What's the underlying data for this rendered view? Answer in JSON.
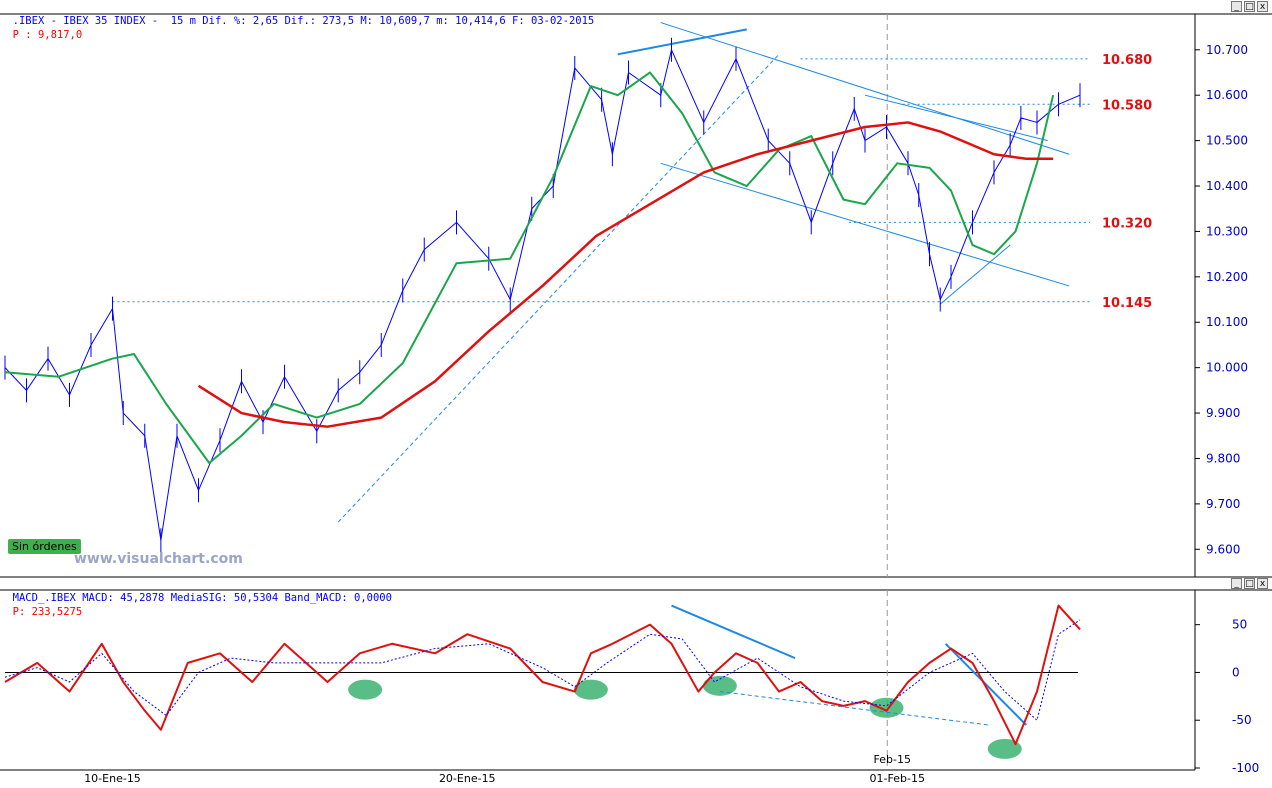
{
  "price_panel": {
    "header_main": ".IBEX - IBEX 35 INDEX -  15 m Dif. %: 2,65 Dif.: 273,5 M: 10,609,7 m: 10,414,6 F: 03-02-2015",
    "header_p": "P : 9,817,0"
  },
  "macd_panel": {
    "header_main": "MACD_.IBEX MACD: 45,2878 MediaSIG: 50,5304 Band_MACD: 0,0000",
    "header_p": "P: 233,5275"
  },
  "window_buttons": [
    "_",
    "□",
    "x"
  ],
  "status_badge": "Sin órdenes",
  "watermark": "www.visualchart.com",
  "colors": {
    "price": "#0000ff",
    "ma_fast": "#1aa64a",
    "ma_slow": "#e01010",
    "macd": "#e01010",
    "signal": "#0000ff",
    "trendline": "#1e88e5",
    "level_label": "#e01010",
    "axis_text": "#0000cc",
    "marker": "#3cb371"
  },
  "chart_data": [
    {
      "type": "line",
      "title": "IBEX 35 INDEX 15 m",
      "ylim": [
        9550,
        10770
      ],
      "yticks": [
        9600,
        9700,
        9800,
        9900,
        10000,
        10100,
        10200,
        10300,
        10400,
        10500,
        10600,
        10700
      ],
      "ytick_labels": [
        "9.600",
        "9.700",
        "9.800",
        "9.900",
        "10.000",
        "10.100",
        "10.200",
        "10.300",
        "10.400",
        "10.500",
        "10.600",
        "10.700"
      ],
      "x_labels": [
        "10-Ene-15",
        "20-Ene-15",
        "01-Feb-15"
      ],
      "x_label_positions": [
        0.1,
        0.43,
        0.83
      ],
      "levels": [
        {
          "value": 10680,
          "label": "10.680"
        },
        {
          "value": 10580,
          "label": "10.580"
        },
        {
          "value": 10320,
          "label": "10.320"
        },
        {
          "value": 10145,
          "label": "10.145"
        }
      ],
      "series": [
        {
          "name": "price",
          "x": [
            0,
            0.02,
            0.04,
            0.06,
            0.08,
            0.1,
            0.11,
            0.13,
            0.145,
            0.16,
            0.18,
            0.2,
            0.22,
            0.24,
            0.26,
            0.29,
            0.31,
            0.33,
            0.35,
            0.37,
            0.39,
            0.42,
            0.45,
            0.47,
            0.49,
            0.51,
            0.53,
            0.555,
            0.565,
            0.58,
            0.61,
            0.62,
            0.65,
            0.68,
            0.71,
            0.73,
            0.75,
            0.77,
            0.79,
            0.8,
            0.82,
            0.84,
            0.85,
            0.86,
            0.87,
            0.88,
            0.9,
            0.92,
            0.935,
            0.945,
            0.96,
            0.98,
            1.0
          ],
          "y": [
            10000,
            9950,
            10020,
            9940,
            10050,
            10130,
            9900,
            9850,
            9620,
            9850,
            9730,
            9840,
            9970,
            9880,
            9980,
            9860,
            9950,
            9990,
            10050,
            10170,
            10260,
            10320,
            10240,
            10150,
            10350,
            10400,
            10660,
            10590,
            10470,
            10650,
            10600,
            10700,
            10540,
            10680,
            10500,
            10450,
            10320,
            10450,
            10570,
            10500,
            10530,
            10450,
            10380,
            10250,
            10150,
            10200,
            10320,
            10430,
            10490,
            10550,
            10540,
            10580,
            10600
          ]
        },
        {
          "name": "ma_fast",
          "x": [
            0,
            0.05,
            0.1,
            0.12,
            0.15,
            0.19,
            0.22,
            0.25,
            0.29,
            0.33,
            0.37,
            0.42,
            0.47,
            0.51,
            0.545,
            0.57,
            0.6,
            0.63,
            0.66,
            0.69,
            0.72,
            0.75,
            0.78,
            0.8,
            0.83,
            0.86,
            0.88,
            0.9,
            0.92,
            0.94,
            0.96,
            0.975
          ],
          "y": [
            9990,
            9980,
            10020,
            10030,
            9920,
            9790,
            9850,
            9920,
            9890,
            9920,
            10010,
            10230,
            10240,
            10420,
            10620,
            10600,
            10650,
            10560,
            10430,
            10400,
            10480,
            10510,
            10370,
            10360,
            10450,
            10440,
            10390,
            10270,
            10250,
            10300,
            10450,
            10600
          ]
        },
        {
          "name": "ma_slow",
          "x": [
            0.18,
            0.22,
            0.26,
            0.3,
            0.35,
            0.4,
            0.45,
            0.5,
            0.55,
            0.6,
            0.65,
            0.7,
            0.75,
            0.8,
            0.84,
            0.87,
            0.9,
            0.92,
            0.95,
            0.975
          ],
          "y": [
            9960,
            9900,
            9880,
            9870,
            9890,
            9970,
            10080,
            10180,
            10290,
            10360,
            10430,
            10470,
            10500,
            10530,
            10540,
            10520,
            10490,
            10470,
            10460,
            10460
          ]
        }
      ]
    },
    {
      "type": "line",
      "title": "MACD",
      "ylim": [
        -100,
        80
      ],
      "yticks": [
        50,
        0,
        -50,
        -100
      ],
      "ytick_labels": [
        "50",
        "0",
        "-50",
        "-100"
      ],
      "x_labels": [
        "Feb-15"
      ],
      "x_label_positions": [
        0.83
      ],
      "series": [
        {
          "name": "MACD",
          "x": [
            0,
            0.03,
            0.06,
            0.09,
            0.11,
            0.13,
            0.145,
            0.17,
            0.2,
            0.23,
            0.26,
            0.3,
            0.33,
            0.36,
            0.4,
            0.43,
            0.47,
            0.5,
            0.53,
            0.545,
            0.565,
            0.6,
            0.62,
            0.645,
            0.66,
            0.68,
            0.7,
            0.72,
            0.74,
            0.76,
            0.78,
            0.8,
            0.82,
            0.84,
            0.86,
            0.88,
            0.9,
            0.92,
            0.94,
            0.96,
            0.98,
            1.0
          ],
          "y": [
            -10,
            10,
            -20,
            30,
            -10,
            -40,
            -60,
            10,
            20,
            -10,
            30,
            -10,
            20,
            30,
            20,
            40,
            25,
            -10,
            -20,
            20,
            30,
            50,
            30,
            -20,
            0,
            20,
            10,
            -20,
            -10,
            -30,
            -35,
            -30,
            -40,
            -10,
            10,
            25,
            10,
            -30,
            -75,
            -20,
            70,
            45
          ]
        },
        {
          "name": "Signal",
          "x": [
            0,
            0.03,
            0.06,
            0.09,
            0.12,
            0.15,
            0.18,
            0.21,
            0.25,
            0.3,
            0.35,
            0.4,
            0.45,
            0.5,
            0.53,
            0.56,
            0.6,
            0.63,
            0.66,
            0.7,
            0.74,
            0.78,
            0.82,
            0.86,
            0.9,
            0.93,
            0.96,
            0.98,
            1.0
          ],
          "y": [
            -5,
            5,
            -10,
            20,
            -20,
            -45,
            0,
            15,
            10,
            10,
            10,
            25,
            30,
            5,
            -15,
            10,
            40,
            35,
            -10,
            15,
            -15,
            -30,
            -35,
            0,
            20,
            -20,
            -50,
            40,
            55
          ]
        }
      ]
    }
  ]
}
